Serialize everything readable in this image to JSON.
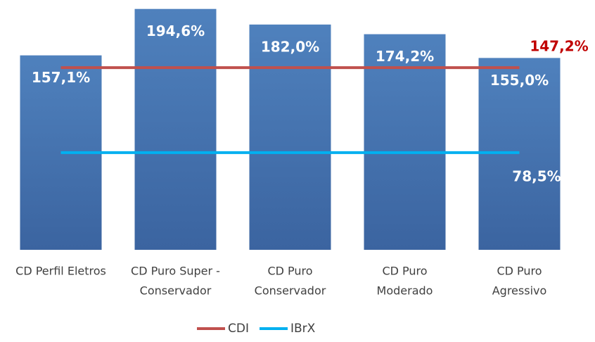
{
  "chart_data": {
    "type": "bar",
    "categories": [
      [
        "CD Perfil Eletros"
      ],
      [
        "CD Puro Super -",
        "Conservador"
      ],
      [
        "CD Puro",
        "Conservador"
      ],
      [
        "CD Puro",
        "Moderado"
      ],
      [
        "CD Puro",
        "Agressivo"
      ]
    ],
    "values": [
      157.1,
      194.6,
      182.0,
      174.2,
      155.0
    ],
    "value_labels": [
      "157,1%",
      "194,6%",
      "182,0%",
      "174,2%",
      "155,0%"
    ],
    "color": "#4f81bd",
    "ylim": [
      0,
      195
    ],
    "lines": [
      {
        "name": "CDI",
        "color": "#c0504d",
        "value": 147.2,
        "value_label": "147,2%",
        "label_color": "#c00000"
      },
      {
        "name": "IBrX",
        "color": "#00b0f0",
        "value": 78.5,
        "value_label": "78,5%",
        "label_color": "#ffffff"
      }
    ]
  }
}
